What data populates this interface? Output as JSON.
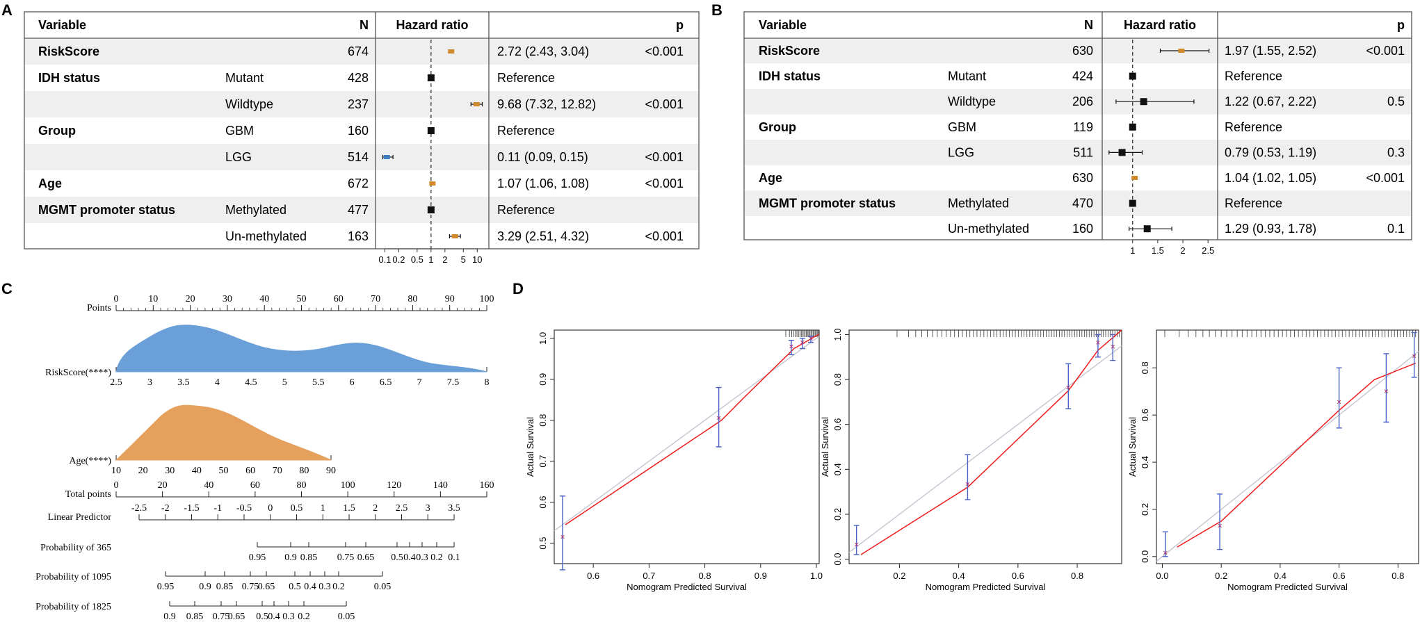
{
  "panel_labels": {
    "a": "A",
    "b": "B",
    "c": "C",
    "d": "D"
  },
  "colors": {
    "stripe": "#efefef",
    "border": "#555555",
    "box_black": "#111111",
    "box_orange": "#d0892c",
    "box_blue": "#3d7fc1",
    "density_blue": "#6a9fd8",
    "density_orange": "#e4a05c",
    "calib_red": "#ee1c1c",
    "calib_gray": "#c8c8d4",
    "err_blue": "#4a5fc8",
    "point_mark": "#b02a63"
  },
  "forest_a": {
    "headers": {
      "variable": "Variable",
      "n": "N",
      "hr": "Hazard ratio",
      "p": "p"
    },
    "ticks": [
      "0.1",
      "0.2",
      "0.5",
      "1",
      "2",
      "5",
      "10"
    ],
    "rows": [
      {
        "var": "RiskScore",
        "sub": "",
        "n": "674",
        "ci": "2.72 (2.43, 3.04)",
        "p": "<0.001"
      },
      {
        "var": "IDH status",
        "sub": "Mutant",
        "n": "428",
        "ci": "Reference",
        "p": ""
      },
      {
        "var": "",
        "sub": "Wildtype",
        "n": "237",
        "ci": "9.68 (7.32, 12.82)",
        "p": "<0.001"
      },
      {
        "var": "Group",
        "sub": "GBM",
        "n": "160",
        "ci": "Reference",
        "p": ""
      },
      {
        "var": "",
        "sub": "LGG",
        "n": "514",
        "ci": "0.11 (0.09, 0.15)",
        "p": "<0.001"
      },
      {
        "var": "Age",
        "sub": "",
        "n": "672",
        "ci": "1.07 (1.06, 1.08)",
        "p": "<0.001"
      },
      {
        "var": "MGMT promoter status",
        "sub": "Methylated",
        "n": "477",
        "ci": "Reference",
        "p": ""
      },
      {
        "var": "",
        "sub": "Un-methylated",
        "n": "163",
        "ci": "3.29 (2.51, 4.32)",
        "p": "<0.001"
      }
    ]
  },
  "forest_b": {
    "headers": {
      "variable": "Variable",
      "n": "N",
      "hr": "Hazard ratio",
      "p": "p"
    },
    "ticks": [
      "1",
      "1.5",
      "2",
      "2.5"
    ],
    "rows": [
      {
        "var": "RiskScore",
        "sub": "",
        "n": "630",
        "ci": "1.97 (1.55, 2.52)",
        "p": "<0.001"
      },
      {
        "var": "IDH status",
        "sub": "Mutant",
        "n": "424",
        "ci": "Reference",
        "p": ""
      },
      {
        "var": "",
        "sub": "Wildtype",
        "n": "206",
        "ci": "1.22 (0.67, 2.22)",
        "p": "0.5"
      },
      {
        "var": "Group",
        "sub": "GBM",
        "n": "119",
        "ci": "Reference",
        "p": ""
      },
      {
        "var": "",
        "sub": "LGG",
        "n": "511",
        "ci": "0.79 (0.53, 1.19)",
        "p": "0.3"
      },
      {
        "var": "Age",
        "sub": "",
        "n": "630",
        "ci": "1.04 (1.02, 1.05)",
        "p": "<0.001"
      },
      {
        "var": "MGMT promoter status",
        "sub": "Methylated",
        "n": "470",
        "ci": "Reference",
        "p": ""
      },
      {
        "var": "",
        "sub": "Un-methylated",
        "n": "160",
        "ci": "1.29 (0.93, 1.78)",
        "p": "0.1"
      }
    ]
  },
  "nomogram": {
    "rows": [
      {
        "label": "Points",
        "ticks": [
          "0",
          "10",
          "20",
          "30",
          "40",
          "50",
          "60",
          "70",
          "80",
          "90",
          "100"
        ],
        "labels_above": true
      },
      {
        "label": "RiskScore(****)",
        "ticks": [
          "2.5",
          "3",
          "3.5",
          "4",
          "4.5",
          "5",
          "5.5",
          "6",
          "6.5",
          "7",
          "7.5",
          "8"
        ],
        "labels_above": false
      },
      {
        "label": "Age(****)",
        "ticks": [
          "10",
          "20",
          "30",
          "40",
          "50",
          "60",
          "70",
          "80",
          "90"
        ],
        "labels_above": false
      },
      {
        "label": "Total points",
        "ticks": [
          "0",
          "20",
          "40",
          "60",
          "80",
          "100",
          "120",
          "140",
          "160"
        ],
        "labels_above": true
      },
      {
        "label": "Linear Predictor",
        "ticks": [
          "-2.5",
          "-2",
          "-1.5",
          "-1",
          "-0.5",
          "0",
          "0.5",
          "1",
          "1.5",
          "2",
          "2.5",
          "3",
          "3.5"
        ],
        "labels_above": true
      },
      {
        "label": "Probability of 365",
        "ticks": [
          "0.95",
          "0.9",
          "0.85",
          "0.75",
          "0.65",
          "0.5",
          "0.4",
          "0.3",
          "0.2",
          "0.1"
        ],
        "labels_above": false
      },
      {
        "label": "Probability of 1095",
        "ticks": [
          "0.95",
          "0.9",
          "0.85",
          "0.75",
          "0.65",
          "0.5",
          "0.4",
          "0.3",
          "0.2",
          "0.05"
        ],
        "labels_above": false
      },
      {
        "label": "Probability of 1825",
        "ticks": [
          "0.9",
          "0.85",
          "0.75",
          "0.65",
          "0.5",
          "0.4",
          "0.3",
          "0.2",
          "0.05"
        ],
        "labels_above": false
      }
    ]
  },
  "calibration": [
    {
      "xlabel": "Nomogram Predicted Survival",
      "ylabel": "Actual Survival",
      "xticks": [
        "0.6",
        "0.7",
        "0.8",
        "0.9",
        "1.0"
      ],
      "yticks": [
        "0.5",
        "0.6",
        "0.7",
        "0.8",
        "0.9",
        "1.0"
      ],
      "xlim": [
        0.53,
        1.005
      ],
      "ylim": [
        0.45,
        1.02
      ],
      "points": [
        [
          0.545,
          0.515
        ],
        [
          0.825,
          0.805
        ],
        [
          0.955,
          0.98
        ],
        [
          0.975,
          0.99
        ],
        [
          0.99,
          1.0
        ]
      ]
    },
    {
      "xlabel": "Nomogram Predicted Survival",
      "ylabel": "Actual Survival",
      "xticks": [
        "0.2",
        "0.4",
        "0.6",
        "0.8"
      ],
      "yticks": [
        "0.0",
        "0.2",
        "0.4",
        "0.6",
        "0.8",
        "1.0"
      ],
      "xlim": [
        0.03,
        0.95
      ],
      "ylim": [
        -0.02,
        1.02
      ],
      "points": [
        [
          0.055,
          0.065
        ],
        [
          0.43,
          0.335
        ],
        [
          0.77,
          0.765
        ],
        [
          0.87,
          0.965
        ],
        [
          0.92,
          0.945
        ]
      ]
    },
    {
      "xlabel": "Nomogram Predicted Survival",
      "ylabel": "Actual Survival",
      "xticks": [
        "0.0",
        "0.2",
        "0.4",
        "0.6",
        "0.8"
      ],
      "yticks": [
        "0.0",
        "0.2",
        "0.4",
        "0.6",
        "0.8"
      ],
      "xlim": [
        -0.02,
        0.87
      ],
      "ylim": [
        -0.03,
        0.96
      ],
      "points": [
        [
          0.01,
          0.015
        ],
        [
          0.195,
          0.13
        ],
        [
          0.6,
          0.655
        ],
        [
          0.76,
          0.7
        ],
        [
          0.855,
          0.85
        ]
      ]
    }
  ],
  "chart_data": [
    {
      "type": "forest",
      "panel": "A",
      "title": "Hazard ratio",
      "log_scale": true,
      "xlim": [
        0.08,
        14
      ],
      "series": [
        {
          "name": "HR",
          "hr": [
            2.72,
            1,
            9.68,
            1,
            0.11,
            1.07,
            1,
            3.29
          ],
          "lo": [
            2.43,
            null,
            7.32,
            null,
            0.09,
            1.06,
            null,
            2.51
          ],
          "hi": [
            3.04,
            null,
            12.82,
            null,
            0.15,
            1.08,
            null,
            4.32
          ]
        }
      ]
    },
    {
      "type": "forest",
      "panel": "B",
      "title": "Hazard ratio",
      "log_scale": false,
      "xlim": [
        0.45,
        2.65
      ],
      "series": [
        {
          "name": "HR",
          "hr": [
            1.97,
            1,
            1.22,
            1,
            0.79,
            1.04,
            1,
            1.29
          ],
          "lo": [
            1.55,
            null,
            0.67,
            null,
            0.53,
            1.02,
            null,
            0.93
          ],
          "hi": [
            2.52,
            null,
            2.22,
            null,
            1.19,
            1.05,
            null,
            1.78
          ]
        }
      ]
    },
    {
      "type": "scatter",
      "panel": "D1",
      "xlabel": "Nomogram Predicted Survival",
      "ylabel": "Actual Survival",
      "x": [
        0.545,
        0.825,
        0.955,
        0.975,
        0.99
      ],
      "y": [
        0.515,
        0.805,
        0.98,
        0.99,
        1.0
      ],
      "err_lo": [
        0.435,
        0.735,
        0.96,
        0.975,
        0.99
      ],
      "err_hi": [
        0.615,
        0.88,
        0.995,
        1.0,
        1.005
      ]
    },
    {
      "type": "scatter",
      "panel": "D2",
      "xlabel": "Nomogram Predicted Survival",
      "ylabel": "Actual Survival",
      "x": [
        0.055,
        0.43,
        0.77,
        0.87,
        0.92
      ],
      "y": [
        0.065,
        0.335,
        0.765,
        0.965,
        0.945
      ],
      "err_lo": [
        0.02,
        0.265,
        0.67,
        0.9,
        0.885
      ],
      "err_hi": [
        0.15,
        0.465,
        0.87,
        1.0,
        1.0
      ]
    },
    {
      "type": "scatter",
      "panel": "D3",
      "xlabel": "Nomogram Predicted Survival",
      "ylabel": "Actual Survival",
      "x": [
        0.01,
        0.195,
        0.6,
        0.76,
        0.855
      ],
      "y": [
        0.015,
        0.13,
        0.655,
        0.7,
        0.85
      ],
      "err_lo": [
        0.0,
        0.03,
        0.545,
        0.57,
        0.76
      ],
      "err_hi": [
        0.105,
        0.265,
        0.8,
        0.86,
        0.95
      ]
    }
  ]
}
